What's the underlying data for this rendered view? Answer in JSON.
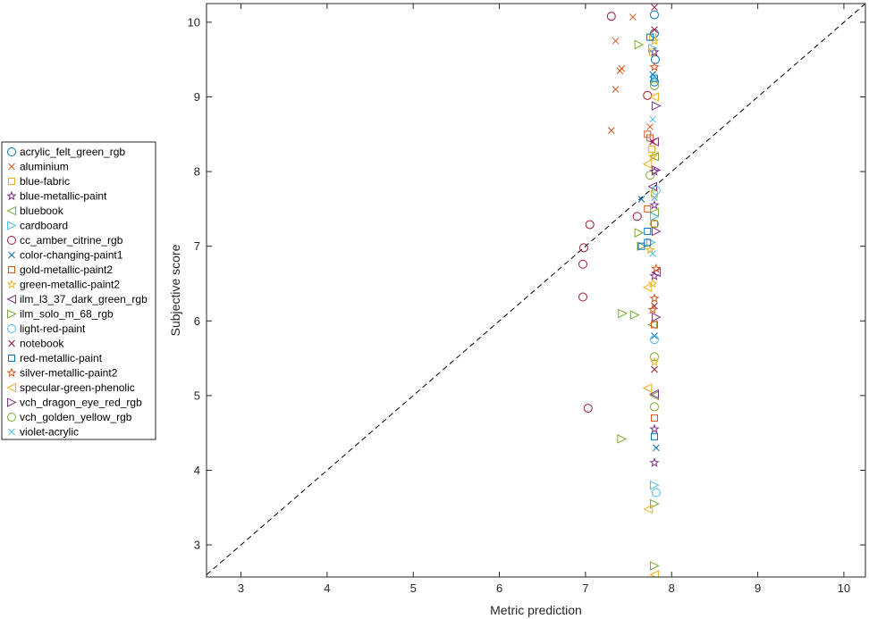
{
  "chart_data": {
    "type": "scatter",
    "title": "",
    "xlabel": "Metric prediction",
    "ylabel": "Subjective score",
    "xlim": [
      2.6,
      10.25
    ],
    "ylim": [
      2.57,
      10.25
    ],
    "xticks": [
      "3",
      "4",
      "5",
      "6",
      "7",
      "8",
      "9",
      "10"
    ],
    "yticks": [
      "3",
      "4",
      "5",
      "6",
      "7",
      "8",
      "9",
      "10"
    ],
    "grid": false,
    "legend_position": "outside-left",
    "reference_line": {
      "style": "dashed",
      "from": [
        2.6,
        2.6
      ],
      "to": [
        10.25,
        10.25
      ]
    },
    "series": [
      {
        "name": "acrylic_felt_green_rgb",
        "marker": "circle",
        "color": "#0072BD",
        "points": [
          [
            7.8,
            10.1
          ],
          [
            7.8,
            9.85
          ],
          [
            7.81,
            9.5
          ],
          [
            7.8,
            9.2
          ]
        ]
      },
      {
        "name": "aluminium",
        "marker": "x",
        "color": "#D95319",
        "points": [
          [
            7.35,
            9.75
          ],
          [
            7.4,
            9.35
          ],
          [
            7.42,
            9.38
          ],
          [
            7.35,
            9.1
          ],
          [
            7.3,
            8.55
          ],
          [
            7.55,
            10.07
          ],
          [
            7.75,
            8.6
          ]
        ]
      },
      {
        "name": "blue-fabric",
        "marker": "square",
        "color": "#EDB120",
        "points": [
          [
            7.78,
            9.8
          ],
          [
            7.78,
            9.6
          ],
          [
            7.77,
            8.3
          ],
          [
            7.8,
            7.7
          ]
        ]
      },
      {
        "name": "blue-metallic-paint",
        "marker": "star",
        "color": "#7E2F8E",
        "points": [
          [
            7.8,
            9.6
          ],
          [
            7.8,
            8.0
          ],
          [
            7.8,
            7.55
          ],
          [
            7.8,
            6.6
          ],
          [
            7.8,
            4.55
          ],
          [
            7.8,
            4.1
          ]
        ]
      },
      {
        "name": "bluebook",
        "marker": "triangle-left",
        "color": "#77AC30",
        "points": [
          [
            7.8,
            8.2
          ],
          [
            7.8,
            7.45
          ],
          [
            7.78,
            5.95
          ],
          [
            7.8,
            5.0
          ]
        ]
      },
      {
        "name": "cardboard",
        "marker": "triangle-right",
        "color": "#4DBEEE",
        "points": [
          [
            7.78,
            9.65
          ],
          [
            7.8,
            7.4
          ],
          [
            7.76,
            7.05
          ],
          [
            7.8,
            3.8
          ]
        ]
      },
      {
        "name": "cc_amber_citrine_rgb",
        "marker": "circle",
        "color": "#A2142F",
        "points": [
          [
            7.3,
            10.08
          ],
          [
            7.72,
            9.02
          ],
          [
            7.05,
            7.29
          ],
          [
            6.98,
            6.98
          ],
          [
            6.97,
            6.76
          ],
          [
            6.97,
            6.32
          ],
          [
            7.6,
            7.4
          ],
          [
            7.03,
            4.83
          ]
        ]
      },
      {
        "name": "color-changing-paint1",
        "marker": "x",
        "color": "#0072BD",
        "points": [
          [
            7.65,
            7.63
          ],
          [
            7.78,
            9.3
          ],
          [
            7.8,
            5.8
          ],
          [
            7.82,
            4.3
          ]
        ]
      },
      {
        "name": "gold-metallic-paint2",
        "marker": "square",
        "color": "#D95319",
        "points": [
          [
            7.72,
            8.5
          ],
          [
            7.75,
            8.45
          ],
          [
            7.72,
            7.5
          ],
          [
            7.8,
            7.3
          ],
          [
            7.8,
            5.95
          ],
          [
            7.8,
            4.7
          ]
        ]
      },
      {
        "name": "green-metallic-paint2",
        "marker": "star",
        "color": "#EDB120",
        "points": [
          [
            7.8,
            9.75
          ],
          [
            7.78,
            8.2
          ],
          [
            7.78,
            6.5
          ],
          [
            7.8,
            5.45
          ],
          [
            7.75,
            6.95
          ]
        ]
      },
      {
        "name": "ilm_l3_37_dark_green_rgb",
        "marker": "triangle-left",
        "color": "#7E2F8E",
        "points": [
          [
            7.8,
            8.4
          ],
          [
            7.78,
            7.8
          ],
          [
            7.82,
            6.65
          ],
          [
            7.8,
            5.02
          ]
        ]
      },
      {
        "name": "ilm_solo_m_68_rgb",
        "marker": "triangle-right",
        "color": "#77AC30",
        "points": [
          [
            7.62,
            9.7
          ],
          [
            7.62,
            7.18
          ],
          [
            7.65,
            7.0
          ],
          [
            7.43,
            6.1
          ],
          [
            7.57,
            6.08
          ],
          [
            7.42,
            4.42
          ],
          [
            7.8,
            3.55
          ],
          [
            7.8,
            2.72
          ]
        ]
      },
      {
        "name": "light-red-paint",
        "marker": "circle",
        "color": "#4DBEEE",
        "points": [
          [
            7.82,
            7.75
          ],
          [
            7.8,
            5.75
          ],
          [
            7.82,
            3.7
          ]
        ]
      },
      {
        "name": "notebook",
        "marker": "x",
        "color": "#A2142F",
        "points": [
          [
            7.8,
            10.2
          ],
          [
            7.8,
            9.9
          ],
          [
            7.78,
            8.4
          ],
          [
            7.8,
            6.2
          ],
          [
            7.8,
            5.35
          ]
        ]
      },
      {
        "name": "red-metallic-paint",
        "marker": "square",
        "color": "#0072BD",
        "points": [
          [
            7.75,
            9.8
          ],
          [
            7.8,
            9.25
          ],
          [
            7.72,
            7.2
          ],
          [
            7.72,
            7.05
          ],
          [
            7.65,
            7.0
          ],
          [
            7.8,
            4.45
          ]
        ]
      },
      {
        "name": "silver-metallic-paint2",
        "marker": "star",
        "color": "#D95319",
        "points": [
          [
            7.8,
            9.4
          ],
          [
            7.8,
            6.3
          ],
          [
            7.78,
            6.15
          ],
          [
            7.82,
            6.7
          ]
        ]
      },
      {
        "name": "specular-green-phenolic",
        "marker": "triangle-left",
        "color": "#EDB120",
        "points": [
          [
            7.72,
            8.1
          ],
          [
            7.72,
            6.45
          ],
          [
            7.72,
            5.1
          ],
          [
            7.73,
            3.48
          ],
          [
            7.8,
            2.6
          ],
          [
            7.8,
            9.0
          ]
        ]
      },
      {
        "name": "vch_dragon_eye_red_rgb",
        "marker": "triangle-right",
        "color": "#7E2F8E",
        "points": [
          [
            7.82,
            8.88
          ],
          [
            7.82,
            8.02
          ],
          [
            7.82,
            7.2
          ],
          [
            7.82,
            6.05
          ]
        ]
      },
      {
        "name": "vch_golden_yellow_rgb",
        "marker": "circle",
        "color": "#77AC30",
        "points": [
          [
            7.8,
            9.15
          ],
          [
            7.75,
            7.95
          ],
          [
            7.8,
            7.3
          ],
          [
            7.8,
            5.52
          ],
          [
            7.8,
            4.85
          ]
        ]
      },
      {
        "name": "violet-acrylic",
        "marker": "x",
        "color": "#4DBEEE",
        "points": [
          [
            7.8,
            9.25
          ],
          [
            7.78,
            8.7
          ],
          [
            7.8,
            7.65
          ],
          [
            7.78,
            6.9
          ]
        ]
      }
    ]
  }
}
